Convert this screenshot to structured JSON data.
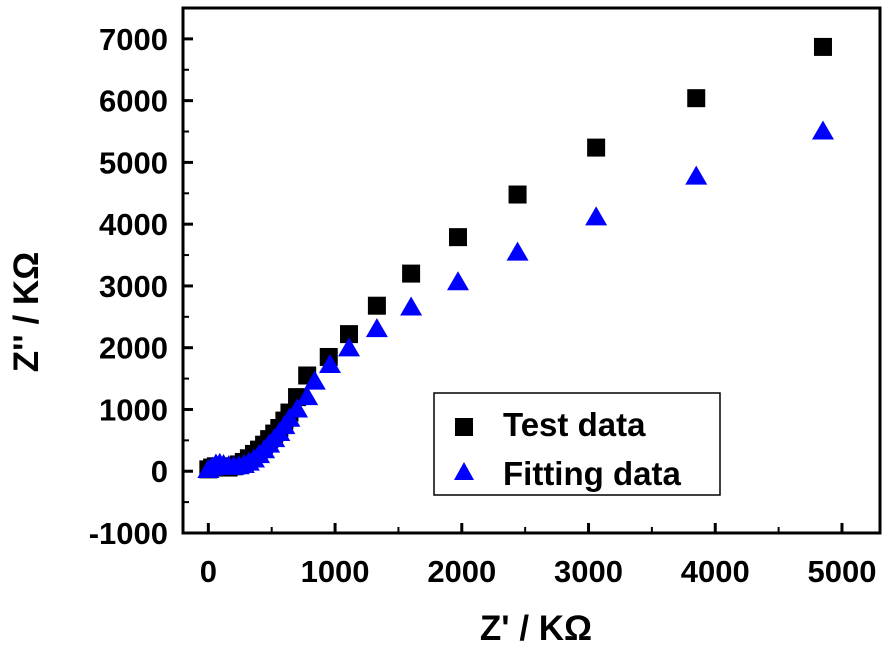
{
  "chart_data": {
    "type": "scatter",
    "xlabel": "Z' / KΩ",
    "ylabel": "Z'' / KΩ",
    "xlim": [
      -200,
      5300
    ],
    "ylim": [
      -1000,
      7500
    ],
    "xticks": [
      0,
      1000,
      2000,
      3000,
      4000,
      5000
    ],
    "yticks": [
      -1000,
      0,
      1000,
      2000,
      3000,
      4000,
      5000,
      6000,
      7000
    ],
    "xtick_labels": [
      "0",
      "1000",
      "2000",
      "3000",
      "4000",
      "5000"
    ],
    "ytick_labels": [
      "-1000",
      "0",
      "1000",
      "2000",
      "3000",
      "4000",
      "5000",
      "6000",
      "7000"
    ],
    "grid": false,
    "legend_position": "bottom-right",
    "series": [
      {
        "name": "Test data",
        "marker": "square",
        "color": "#000000",
        "x": [
          0,
          30,
          60,
          90,
          120,
          160,
          200,
          240,
          280,
          320,
          360,
          400,
          440,
          480,
          520,
          560,
          600,
          640,
          700,
          780,
          950,
          1110,
          1330,
          1600,
          1970,
          2440,
          3060,
          3850,
          4850
        ],
        "y": [
          30,
          60,
          80,
          70,
          60,
          60,
          80,
          110,
          150,
          210,
          280,
          350,
          430,
          520,
          610,
          700,
          820,
          950,
          1200,
          1550,
          1850,
          2220,
          2680,
          3200,
          3790,
          4480,
          5240,
          6040,
          6870
        ]
      },
      {
        "name": "Fitting data",
        "marker": "triangle",
        "color": "#0000ff",
        "x": [
          0,
          30,
          60,
          90,
          120,
          160,
          200,
          240,
          280,
          320,
          360,
          400,
          440,
          480,
          520,
          560,
          600,
          640,
          700,
          780,
          840,
          960,
          1110,
          1330,
          1600,
          1970,
          2440,
          3060,
          3850,
          4850
        ],
        "y": [
          20,
          60,
          110,
          120,
          100,
          80,
          70,
          80,
          100,
          140,
          190,
          260,
          340,
          430,
          520,
          620,
          730,
          850,
          1000,
          1200,
          1450,
          1720,
          1990,
          2300,
          2650,
          3060,
          3540,
          4110,
          4770,
          5500
        ]
      }
    ]
  }
}
